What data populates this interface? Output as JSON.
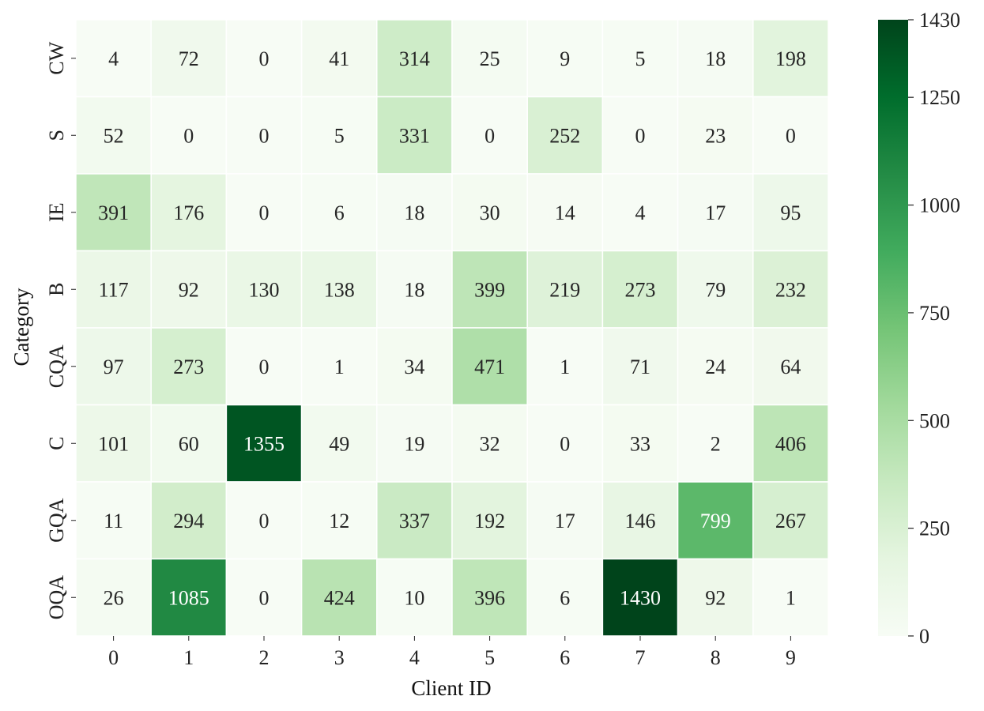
{
  "chart_data": {
    "type": "heatmap",
    "title": "",
    "xlabel": "Client ID",
    "ylabel": "Category",
    "x_categories": [
      "0",
      "1",
      "2",
      "3",
      "4",
      "5",
      "6",
      "7",
      "8",
      "9"
    ],
    "y_categories": [
      "CW",
      "S",
      "IE",
      "B",
      "CQA",
      "C",
      "GQA",
      "OQA"
    ],
    "values": [
      [
        4,
        72,
        0,
        41,
        314,
        25,
        9,
        5,
        18,
        198
      ],
      [
        52,
        0,
        0,
        5,
        331,
        0,
        252,
        0,
        23,
        0
      ],
      [
        391,
        176,
        0,
        6,
        18,
        30,
        14,
        4,
        17,
        95
      ],
      [
        117,
        92,
        130,
        138,
        18,
        399,
        219,
        273,
        79,
        232
      ],
      [
        97,
        273,
        0,
        1,
        34,
        471,
        1,
        71,
        24,
        64
      ],
      [
        101,
        60,
        1355,
        49,
        19,
        32,
        0,
        33,
        2,
        406
      ],
      [
        11,
        294,
        0,
        12,
        337,
        192,
        17,
        146,
        799,
        267
      ],
      [
        26,
        1085,
        0,
        424,
        10,
        396,
        6,
        1430,
        92,
        1
      ]
    ],
    "colorbar": {
      "min": 0,
      "max": 1430,
      "ticks": [
        0,
        250,
        500,
        750,
        1000,
        1250,
        1430
      ],
      "colormap": "Greens",
      "colors": [
        "#f7fcf5",
        "#e5f5e0",
        "#c7e9c0",
        "#a1d99b",
        "#74c476",
        "#41ab5d",
        "#238b45",
        "#006d2c",
        "#00441b"
      ]
    },
    "grid": false,
    "annotated": true,
    "cell_separator_color": "#ffffff"
  }
}
